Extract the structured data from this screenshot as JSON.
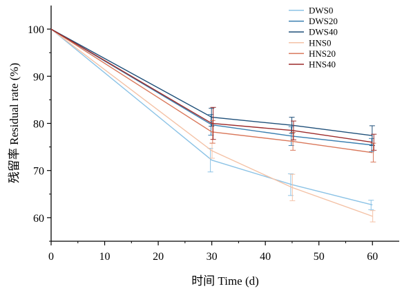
{
  "chart_data": {
    "type": "line",
    "xlabel": "时间  Time (d)",
    "ylabel": "残留率  Residual rate (%)",
    "xlim": [
      0,
      65
    ],
    "ylim": [
      55,
      105
    ],
    "xticks": [
      0,
      10,
      20,
      30,
      40,
      50,
      60
    ],
    "yticks": [
      60,
      70,
      80,
      90,
      100
    ],
    "grid": false,
    "legend_position": "top-right",
    "x": [
      0,
      30,
      45,
      60
    ],
    "series": [
      {
        "name": "DWS0",
        "color": "#8cc3e6",
        "values": [
          100,
          72.2,
          67.0,
          62.7
        ],
        "errors": [
          0,
          2.5,
          2.3,
          1.0
        ]
      },
      {
        "name": "DWS20",
        "color": "#3a7fb0",
        "values": [
          100,
          79.7,
          77.3,
          75.4
        ],
        "errors": [
          0,
          2.2,
          2.0,
          1.4
        ]
      },
      {
        "name": "DWS40",
        "color": "#1e4f79",
        "values": [
          100,
          81.3,
          79.6,
          77.4
        ],
        "errors": [
          0,
          1.9,
          1.7,
          2.1
        ]
      },
      {
        "name": "HNS0",
        "color": "#f4c2a6",
        "values": [
          100,
          74.2,
          66.4,
          60.3
        ],
        "errors": [
          0,
          1.6,
          2.8,
          1.2
        ]
      },
      {
        "name": "HNS20",
        "color": "#d9775a",
        "values": [
          100,
          78.2,
          76.2,
          73.8
        ],
        "errors": [
          0,
          2.4,
          1.9,
          2.0
        ]
      },
      {
        "name": "HNS40",
        "color": "#9c2a2a",
        "values": [
          100,
          80.0,
          78.5,
          76.0
        ],
        "errors": [
          0,
          3.4,
          2.0,
          1.7
        ]
      }
    ]
  }
}
